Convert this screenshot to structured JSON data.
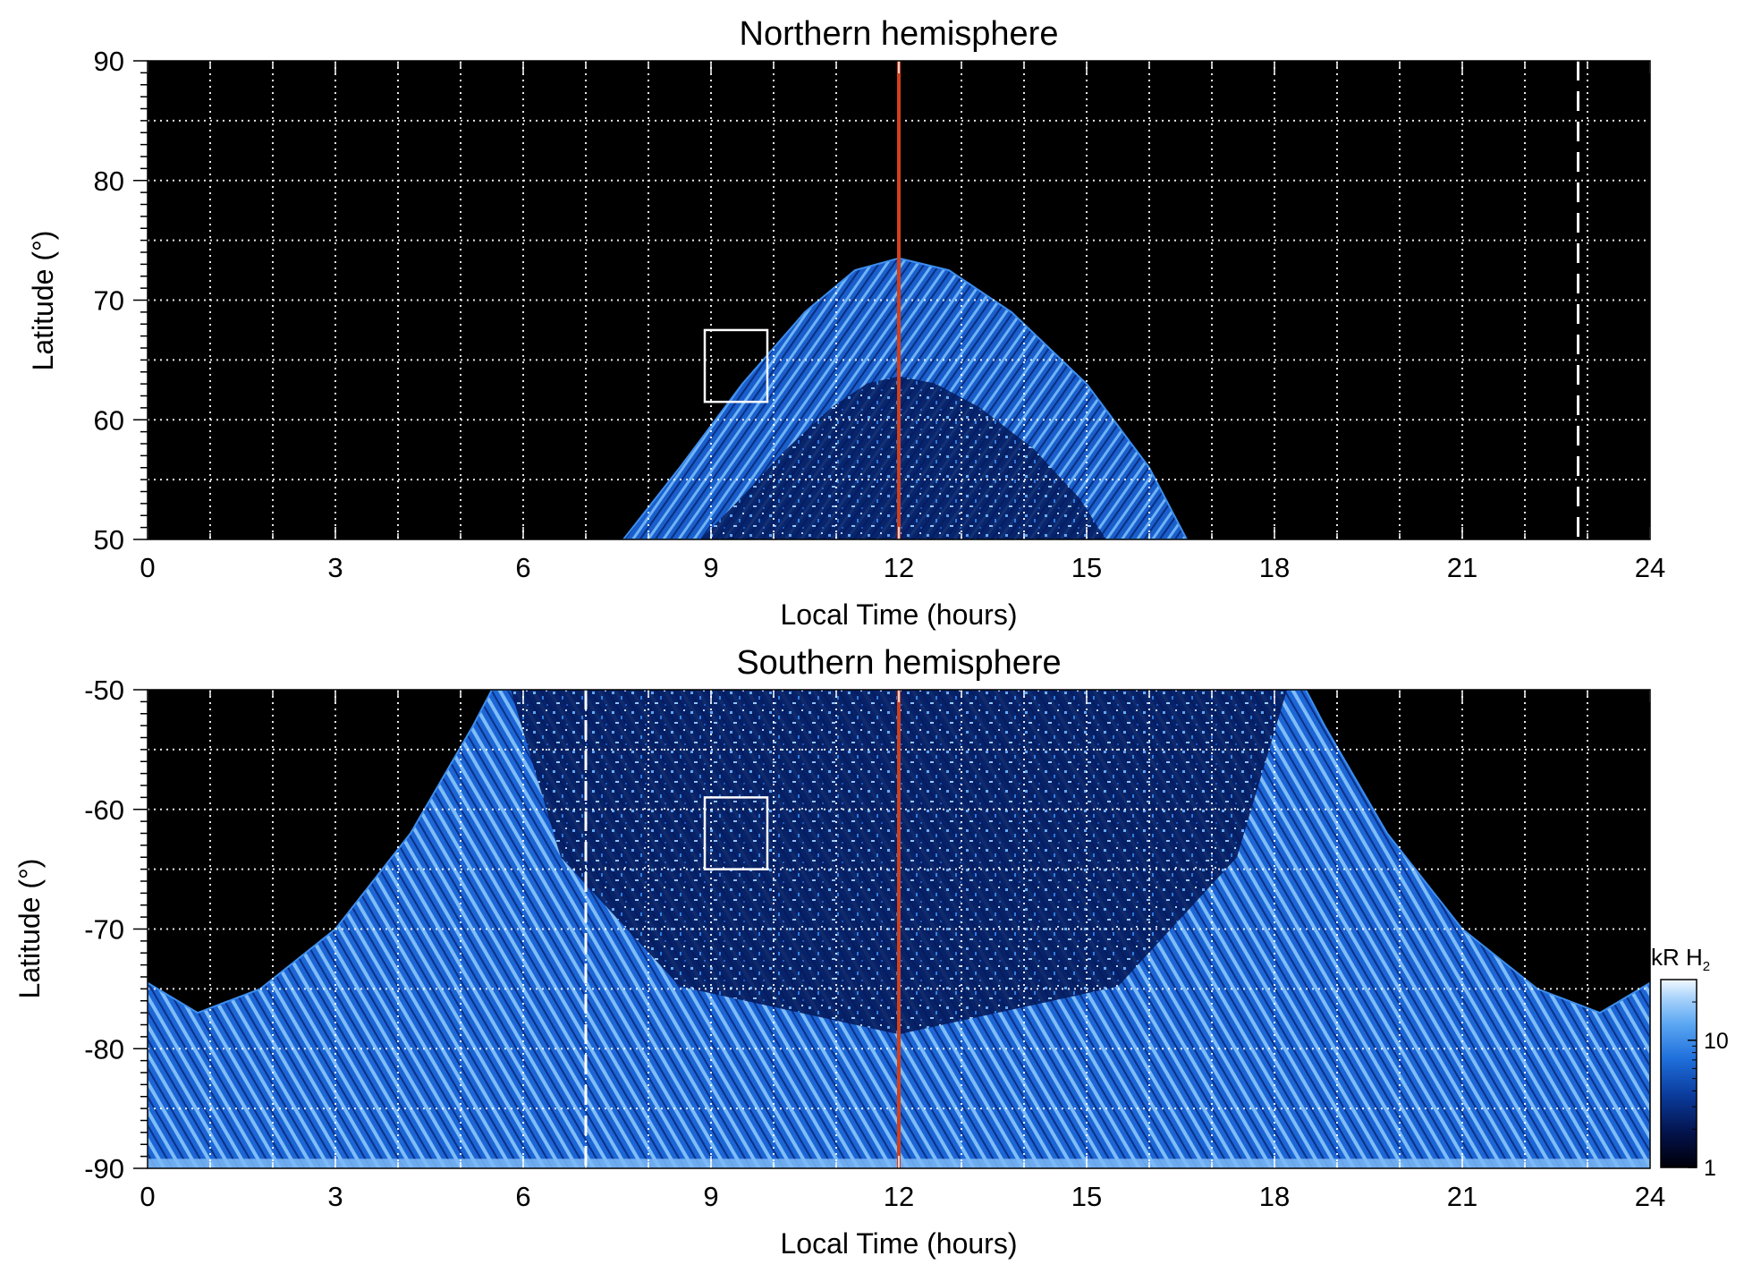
{
  "chart_data": [
    {
      "type": "heatmap",
      "title": "Northern hemisphere",
      "xlabel": "Local Time (hours)",
      "ylabel": "Latitude (°)",
      "xlim": [
        0,
        24
      ],
      "ylim": [
        50,
        90
      ],
      "x_ticks": [
        "0",
        "3",
        "6",
        "9",
        "12",
        "15",
        "18",
        "21",
        "24"
      ],
      "y_ticks": [
        "50",
        "60",
        "70",
        "80",
        "90"
      ],
      "grid": true,
      "emission_region": {
        "center_local_time": 12,
        "edge": [
          {
            "local_time": 7.6,
            "latitude": 50
          },
          {
            "local_time": 8.5,
            "latitude": 56
          },
          {
            "local_time": 9.5,
            "latitude": 63
          },
          {
            "local_time": 10.5,
            "latitude": 69
          },
          {
            "local_time": 11.3,
            "latitude": 72.5
          },
          {
            "local_time": 12.0,
            "latitude": 73.5
          },
          {
            "local_time": 12.8,
            "latitude": 72.5
          },
          {
            "local_time": 13.8,
            "latitude": 69
          },
          {
            "local_time": 15.0,
            "latitude": 63
          },
          {
            "local_time": 16.0,
            "latitude": 56
          },
          {
            "local_time": 16.6,
            "latitude": 50
          }
        ]
      },
      "noon_line": {
        "local_time": 12,
        "color": "#d2401a"
      },
      "dashed_line": {
        "local_time": 22.85,
        "color": "#ffffff"
      },
      "box": {
        "local_time": [
          8.9,
          9.9
        ],
        "latitude": [
          61.5,
          67.5
        ]
      }
    },
    {
      "type": "heatmap",
      "title": "Southern hemisphere",
      "xlabel": "Local Time (hours)",
      "ylabel": "Latitude (°)",
      "xlim": [
        0,
        24
      ],
      "ylim": [
        -90,
        -50
      ],
      "x_ticks": [
        "0",
        "3",
        "6",
        "9",
        "12",
        "15",
        "18",
        "21",
        "24"
      ],
      "y_ticks": [
        "-50",
        "-60",
        "-70",
        "-80",
        "-90"
      ],
      "grid": true,
      "emission_region": {
        "center_local_time": 12,
        "edge": [
          {
            "local_time": 0.0,
            "latitude": -74.5
          },
          {
            "local_time": 0.8,
            "latitude": -77
          },
          {
            "local_time": 1.8,
            "latitude": -75
          },
          {
            "local_time": 3.0,
            "latitude": -70
          },
          {
            "local_time": 4.2,
            "latitude": -62
          },
          {
            "local_time": 5.2,
            "latitude": -53
          },
          {
            "local_time": 5.5,
            "latitude": -50
          },
          {
            "local_time": 18.5,
            "latitude": -50
          },
          {
            "local_time": 18.8,
            "latitude": -53
          },
          {
            "local_time": 19.8,
            "latitude": -62
          },
          {
            "local_time": 21.0,
            "latitude": -70
          },
          {
            "local_time": 22.2,
            "latitude": -75
          },
          {
            "local_time": 23.2,
            "latitude": -77
          },
          {
            "local_time": 24.0,
            "latitude": -74.5
          }
        ]
      },
      "noon_line": {
        "local_time": 12,
        "color": "#d2401a"
      },
      "dashed_line": {
        "local_time": 7.0,
        "color": "#ffffff"
      },
      "box": {
        "local_time": [
          8.9,
          9.9
        ],
        "latitude": [
          -65,
          -59
        ]
      }
    }
  ],
  "colorbar": {
    "unit_label": "kR H",
    "unit_subscript": "2",
    "scale": "log",
    "ticks": [
      "1",
      "10"
    ],
    "tick_values": [
      1,
      10
    ],
    "range": [
      1,
      30
    ],
    "colors": [
      "#000008",
      "#03124a",
      "#0a3a9a",
      "#1f6fdc",
      "#5aa6f2",
      "#a8d2fb",
      "#f2f9ff"
    ]
  }
}
